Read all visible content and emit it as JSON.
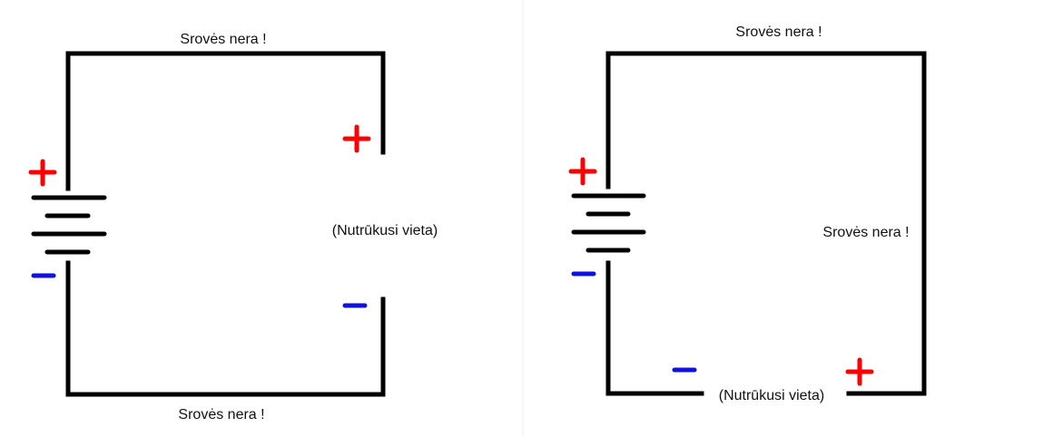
{
  "colors": {
    "wire": "#000000",
    "plus": "#ff0000",
    "minus": "#1010e0",
    "divider": "#eeeeee"
  },
  "left_circuit": {
    "top_label": "Srovės nera !",
    "bottom_label": "Srovės nera !",
    "break_label": "(Nutrūkusi vieta)",
    "battery_plus": "+",
    "battery_minus": "−",
    "break_plus": "+",
    "break_minus": "−"
  },
  "right_circuit": {
    "top_label": "Srovės nera !",
    "side_label": "Srovės nera !",
    "break_label": "(Nutrūkusi vieta)",
    "battery_plus": "+",
    "battery_minus": "−",
    "break_plus": "+",
    "break_minus": "−"
  }
}
